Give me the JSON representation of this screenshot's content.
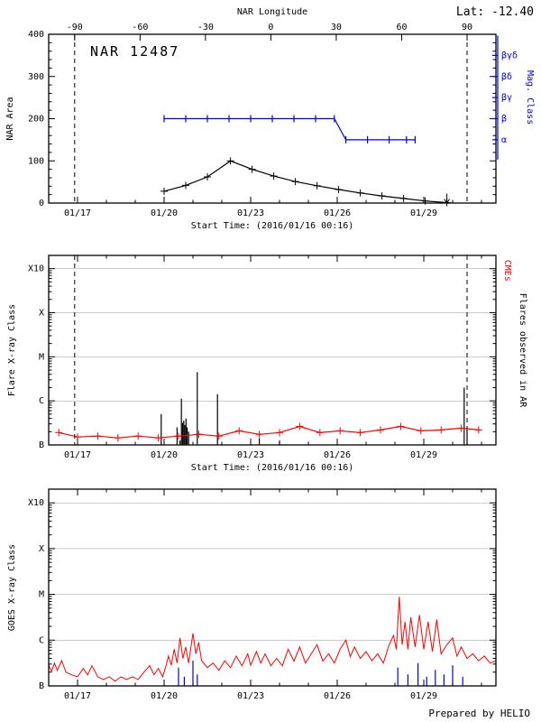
{
  "header": {
    "lat": "Lat: -12.40"
  },
  "footer": {
    "credit": "Prepared by HELIO"
  },
  "chart_data": [
    {
      "name": "nar-area",
      "type": "line",
      "title": "NAR 12487",
      "xlabel": "Start Time: (2016/01/16 00:16)",
      "ylabel": "NAR Area",
      "xlim": [
        16,
        31.5
      ],
      "ylim": [
        0,
        400
      ],
      "y_minor_step": 20,
      "yticks": [
        {
          "value": 0,
          "label": "0"
        },
        {
          "value": 100,
          "label": "100"
        },
        {
          "value": 200,
          "label": "200"
        },
        {
          "value": 300,
          "label": "300"
        },
        {
          "value": 400,
          "label": "400"
        }
      ],
      "xticks": [
        {
          "day": 17,
          "label": "01/17"
        },
        {
          "day": 20,
          "label": "01/20"
        },
        {
          "day": 23,
          "label": "01/23"
        },
        {
          "day": 26,
          "label": "01/26"
        },
        {
          "day": 29,
          "label": "01/29"
        }
      ],
      "top_axis": {
        "label": "NAR Longitude",
        "ticks": [
          -90,
          -60,
          -30,
          0,
          30,
          60,
          90
        ],
        "limb_days": [
          16.9,
          30.5
        ]
      },
      "limb_lines_days": [
        16.9,
        30.5
      ],
      "right_axis": {
        "label": "Mag. Class",
        "color": "#0000ee",
        "ticks": [
          {
            "label": "βγδ",
            "value": 350
          },
          {
            "label": "βδ",
            "value": 300
          },
          {
            "label": "βγ",
            "value": 250
          },
          {
            "label": "β",
            "value": 200
          },
          {
            "label": "α",
            "value": 150
          }
        ]
      },
      "series": [
        {
          "name": "nar-area",
          "color": "#000000",
          "marker": "plus",
          "end_marker": "down-arrow",
          "points": [
            [
              20.0,
              28
            ],
            [
              20.75,
              42
            ],
            [
              21.5,
              62
            ],
            [
              22.3,
              100
            ],
            [
              23.05,
              80
            ],
            [
              23.8,
              64
            ],
            [
              24.55,
              51
            ],
            [
              25.3,
              41
            ],
            [
              26.05,
              32
            ],
            [
              26.8,
              24
            ],
            [
              27.55,
              17
            ],
            [
              28.3,
              11
            ],
            [
              29.05,
              5
            ],
            [
              29.8,
              1
            ]
          ]
        },
        {
          "name": "mag-class",
          "color": "#0000ee",
          "marker": "vtick",
          "points": [
            [
              20.0,
              200
            ],
            [
              20.75,
              200
            ],
            [
              21.5,
              200
            ],
            [
              22.25,
              200
            ],
            [
              23.0,
              200
            ],
            [
              23.75,
              200
            ],
            [
              24.5,
              200
            ],
            [
              25.25,
              200
            ],
            [
              25.9,
              200
            ],
            [
              26.3,
              150
            ],
            [
              27.05,
              150
            ],
            [
              27.8,
              150
            ],
            [
              28.4,
              150
            ],
            [
              28.7,
              150
            ]
          ]
        }
      ]
    },
    {
      "name": "flares-cmes",
      "type": "mixed",
      "xlabel": "Start Time: (2016/01/16 00:16)",
      "ylabel": "Flare X-ray Class",
      "xlim": [
        16,
        31.5
      ],
      "ylim": [
        -7,
        -2.7
      ],
      "log_minor": true,
      "grid": [
        -6,
        -5,
        -4,
        -3
      ],
      "yticks": [
        {
          "value": -7,
          "label": "B"
        },
        {
          "value": -6,
          "label": "C"
        },
        {
          "value": -5,
          "label": "M"
        },
        {
          "value": -4,
          "label": "X"
        },
        {
          "value": -3,
          "label": "X10"
        }
      ],
      "xticks": [
        {
          "day": 17,
          "label": "01/17"
        },
        {
          "day": 20,
          "label": "01/20"
        },
        {
          "day": 23,
          "label": "01/23"
        },
        {
          "day": 26,
          "label": "01/26"
        },
        {
          "day": 29,
          "label": "01/29"
        }
      ],
      "limb_lines_days": [
        16.9,
        30.5
      ],
      "right_labels": [
        {
          "text": "CMEs",
          "color": "#ff0000",
          "pos": 0.08
        },
        {
          "text": "Flares observed in AR",
          "color": "#000000",
          "pos": 0.5
        }
      ],
      "event_sets": [
        {
          "name": "flares-in-ar",
          "color": "#000000",
          "events": [
            [
              19.9,
              -6.3
            ],
            [
              20.45,
              -6.6
            ],
            [
              20.55,
              -6.9
            ],
            [
              20.6,
              -5.95
            ],
            [
              20.64,
              -6.5
            ],
            [
              20.68,
              -6.45
            ],
            [
              20.72,
              -6.55
            ],
            [
              20.76,
              -6.4
            ],
            [
              20.8,
              -6.6
            ],
            [
              20.85,
              -6.7
            ],
            [
              21.15,
              -5.35
            ],
            [
              21.85,
              -5.85
            ],
            [
              23.3,
              -6.85
            ],
            [
              24.0,
              -6.9
            ],
            [
              30.4,
              -5.7
            ],
            [
              30.5,
              -6.6
            ]
          ]
        }
      ],
      "series": [
        {
          "name": "cme-rate",
          "color": "#ff0000",
          "marker": "plus",
          "points": [
            [
              16.35,
              -6.72
            ],
            [
              17.0,
              -6.82
            ],
            [
              17.7,
              -6.8
            ],
            [
              18.4,
              -6.84
            ],
            [
              19.1,
              -6.8
            ],
            [
              19.8,
              -6.84
            ],
            [
              20.5,
              -6.8
            ],
            [
              21.2,
              -6.76
            ],
            [
              21.9,
              -6.8
            ],
            [
              22.6,
              -6.68
            ],
            [
              23.3,
              -6.76
            ],
            [
              24.0,
              -6.72
            ],
            [
              24.7,
              -6.58
            ],
            [
              25.4,
              -6.72
            ],
            [
              26.1,
              -6.68
            ],
            [
              26.8,
              -6.72
            ],
            [
              27.5,
              -6.66
            ],
            [
              28.2,
              -6.58
            ],
            [
              28.9,
              -6.68
            ],
            [
              29.6,
              -6.66
            ],
            [
              30.3,
              -6.62
            ],
            [
              30.9,
              -6.66
            ]
          ]
        }
      ]
    },
    {
      "name": "goes-flux",
      "type": "line",
      "ylabel": "GOES X-ray Class",
      "xlim": [
        16,
        31.5
      ],
      "ylim": [
        -7,
        -2.7
      ],
      "log_minor": true,
      "grid": [
        -6,
        -5,
        -4,
        -3
      ],
      "yticks": [
        {
          "value": -7,
          "label": "B"
        },
        {
          "value": -6,
          "label": "C"
        },
        {
          "value": -5,
          "label": "M"
        },
        {
          "value": -4,
          "label": "X"
        },
        {
          "value": -3,
          "label": "X10"
        }
      ],
      "xticks": [
        {
          "day": 17,
          "label": "01/17"
        },
        {
          "day": 20,
          "label": "01/20"
        },
        {
          "day": 23,
          "label": "01/23"
        },
        {
          "day": 26,
          "label": "01/26"
        },
        {
          "day": 29,
          "label": "01/29"
        }
      ],
      "event_sets": [
        {
          "name": "ar-flare-times",
          "color": "#0000ee",
          "events": [
            [
              20.5,
              -6.6
            ],
            [
              20.7,
              -6.8
            ],
            [
              21.0,
              -6.45
            ],
            [
              21.15,
              -6.75
            ],
            [
              28.1,
              -6.6
            ],
            [
              28.45,
              -6.75
            ],
            [
              28.8,
              -6.5
            ],
            [
              29.1,
              -6.8
            ],
            [
              29.4,
              -6.65
            ],
            [
              29.7,
              -6.75
            ],
            [
              30.0,
              -6.55
            ],
            [
              30.35,
              -6.8
            ]
          ]
        }
      ],
      "series": [
        {
          "name": "goes-xray-flux",
          "color": "#ff0000",
          "width": 1,
          "points": [
            [
              16.0,
              -6.55
            ],
            [
              16.1,
              -6.68
            ],
            [
              16.2,
              -6.5
            ],
            [
              16.3,
              -6.66
            ],
            [
              16.45,
              -6.45
            ],
            [
              16.6,
              -6.7
            ],
            [
              16.8,
              -6.76
            ],
            [
              17.0,
              -6.8
            ],
            [
              17.2,
              -6.62
            ],
            [
              17.35,
              -6.76
            ],
            [
              17.5,
              -6.56
            ],
            [
              17.7,
              -6.8
            ],
            [
              17.9,
              -6.86
            ],
            [
              18.1,
              -6.8
            ],
            [
              18.3,
              -6.9
            ],
            [
              18.5,
              -6.8
            ],
            [
              18.7,
              -6.86
            ],
            [
              18.9,
              -6.8
            ],
            [
              19.1,
              -6.86
            ],
            [
              19.3,
              -6.7
            ],
            [
              19.5,
              -6.56
            ],
            [
              19.65,
              -6.76
            ],
            [
              19.8,
              -6.62
            ],
            [
              19.95,
              -6.8
            ],
            [
              20.05,
              -6.6
            ],
            [
              20.15,
              -6.35
            ],
            [
              20.25,
              -6.55
            ],
            [
              20.35,
              -6.2
            ],
            [
              20.45,
              -6.5
            ],
            [
              20.55,
              -5.95
            ],
            [
              20.65,
              -6.4
            ],
            [
              20.75,
              -6.15
            ],
            [
              20.85,
              -6.5
            ],
            [
              21.0,
              -5.85
            ],
            [
              21.1,
              -6.3
            ],
            [
              21.2,
              -6.05
            ],
            [
              21.3,
              -6.45
            ],
            [
              21.5,
              -6.6
            ],
            [
              21.7,
              -6.5
            ],
            [
              21.9,
              -6.66
            ],
            [
              22.1,
              -6.45
            ],
            [
              22.3,
              -6.6
            ],
            [
              22.5,
              -6.35
            ],
            [
              22.7,
              -6.56
            ],
            [
              22.9,
              -6.3
            ],
            [
              23.0,
              -6.55
            ],
            [
              23.2,
              -6.25
            ],
            [
              23.35,
              -6.5
            ],
            [
              23.5,
              -6.3
            ],
            [
              23.7,
              -6.56
            ],
            [
              23.9,
              -6.4
            ],
            [
              24.1,
              -6.56
            ],
            [
              24.3,
              -6.2
            ],
            [
              24.5,
              -6.46
            ],
            [
              24.7,
              -6.15
            ],
            [
              24.9,
              -6.5
            ],
            [
              25.1,
              -6.3
            ],
            [
              25.3,
              -6.1
            ],
            [
              25.5,
              -6.46
            ],
            [
              25.7,
              -6.3
            ],
            [
              25.9,
              -6.5
            ],
            [
              26.1,
              -6.2
            ],
            [
              26.3,
              -6.0
            ],
            [
              26.45,
              -6.36
            ],
            [
              26.6,
              -6.15
            ],
            [
              26.8,
              -6.4
            ],
            [
              27.0,
              -6.25
            ],
            [
              27.2,
              -6.45
            ],
            [
              27.4,
              -6.3
            ],
            [
              27.6,
              -6.5
            ],
            [
              27.8,
              -6.1
            ],
            [
              27.95,
              -5.9
            ],
            [
              28.05,
              -6.2
            ],
            [
              28.15,
              -5.05
            ],
            [
              28.25,
              -6.1
            ],
            [
              28.35,
              -5.6
            ],
            [
              28.45,
              -6.2
            ],
            [
              28.55,
              -5.5
            ],
            [
              28.7,
              -6.15
            ],
            [
              28.85,
              -5.45
            ],
            [
              29.0,
              -6.2
            ],
            [
              29.15,
              -5.6
            ],
            [
              29.3,
              -6.25
            ],
            [
              29.45,
              -5.55
            ],
            [
              29.6,
              -6.3
            ],
            [
              29.8,
              -6.1
            ],
            [
              30.0,
              -5.95
            ],
            [
              30.15,
              -6.35
            ],
            [
              30.3,
              -6.15
            ],
            [
              30.5,
              -6.4
            ],
            [
              30.7,
              -6.3
            ],
            [
              30.9,
              -6.45
            ],
            [
              31.1,
              -6.35
            ],
            [
              31.3,
              -6.5
            ],
            [
              31.5,
              -6.45
            ]
          ]
        }
      ]
    }
  ]
}
